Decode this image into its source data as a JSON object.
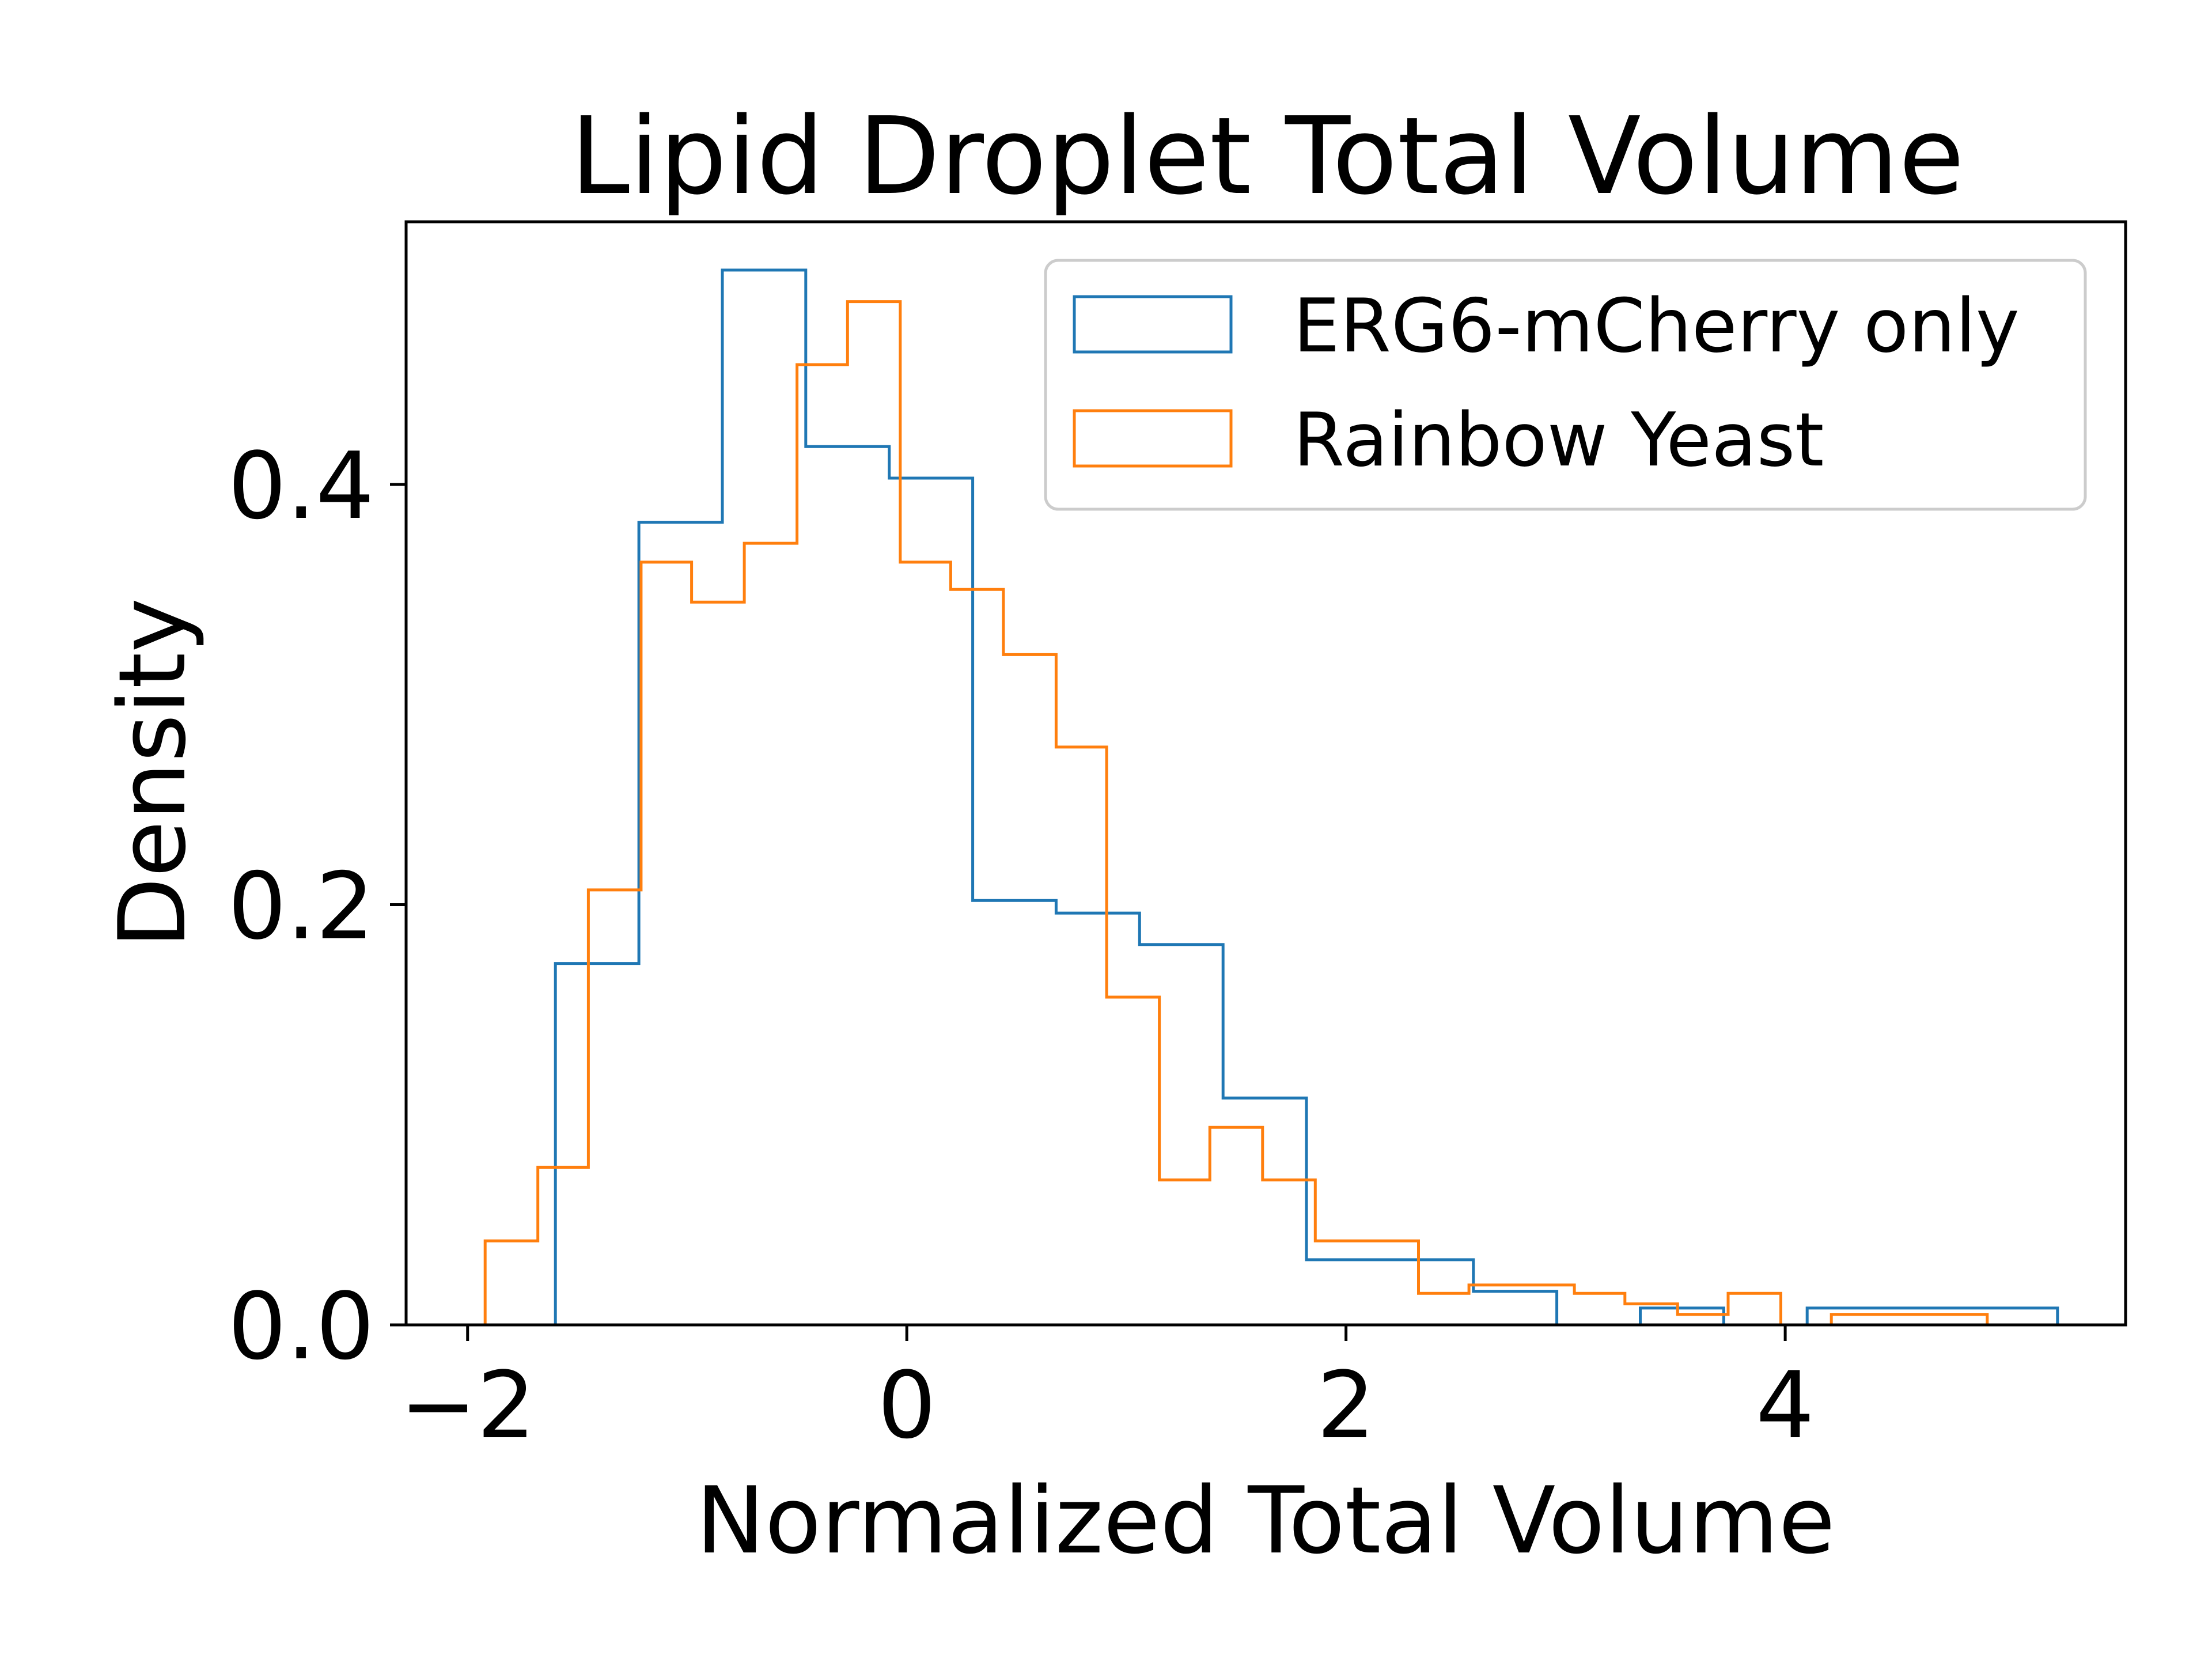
{
  "chart_data": {
    "type": "histogram",
    "title": "Lipid Droplet Total Volume",
    "xlabel": "Normalized Total Volume",
    "ylabel": "Density",
    "xlim": [
      -2.28,
      5.55
    ],
    "ylim": [
      0,
      0.525
    ],
    "xticks": [
      -2,
      0,
      2,
      4
    ],
    "xtick_labels": [
      "−2",
      "0",
      "2",
      "4"
    ],
    "yticks": [
      0.0,
      0.2,
      0.4
    ],
    "ytick_labels": [
      "0.0",
      "0.2",
      "0.4"
    ],
    "grid": false,
    "legend_position": "upper right",
    "series": [
      {
        "name": "ERG6-mCherry only",
        "color": "#1f77b4",
        "histtype": "step",
        "bin_edges": [
          -1.6,
          -1.22,
          -0.84,
          -0.46,
          -0.08,
          0.3,
          0.68,
          1.06,
          1.44,
          1.82,
          2.2,
          2.58,
          2.96,
          3.34,
          3.72,
          4.1,
          4.48,
          4.86,
          5.24
        ],
        "values": [
          0.172,
          0.382,
          0.502,
          0.418,
          0.403,
          0.202,
          0.196,
          0.181,
          0.108,
          0.031,
          0.031,
          0.016,
          0.0,
          0.008,
          0.0,
          0.008,
          0.008,
          0.008
        ]
      },
      {
        "name": "Rainbow Yeast",
        "color": "#ff7f0e",
        "histtype": "step",
        "bin_edges": [
          -1.92,
          -1.68,
          -1.45,
          -1.21,
          -0.98,
          -0.74,
          -0.5,
          -0.27,
          -0.03,
          0.2,
          0.44,
          0.68,
          0.91,
          1.15,
          1.38,
          1.62,
          1.86,
          2.09,
          2.33,
          2.56,
          2.8,
          3.04,
          3.27,
          3.51,
          3.74,
          3.98,
          4.21,
          4.45,
          4.69,
          4.92
        ],
        "values": [
          0.04,
          0.075,
          0.207,
          0.363,
          0.344,
          0.372,
          0.457,
          0.487,
          0.363,
          0.35,
          0.319,
          0.275,
          0.156,
          0.069,
          0.094,
          0.069,
          0.04,
          0.04,
          0.015,
          0.019,
          0.019,
          0.015,
          0.01,
          0.005,
          0.015,
          0.0,
          0.005,
          0.005,
          0.005
        ]
      }
    ]
  }
}
